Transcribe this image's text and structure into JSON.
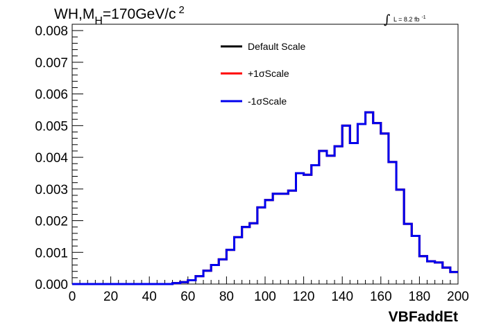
{
  "chart_data": {
    "type": "line",
    "style": "step-histogram",
    "title_parts": {
      "main": "WH,M",
      "sub": "H",
      "rest": "=170GeV/c",
      "sup": "2"
    },
    "lumi_parts": {
      "integral": "∫",
      "text": "L = 8.2 fb",
      "sup": "-1"
    },
    "xlabel": "VBFaddEt",
    "ylabel": "",
    "xlim": [
      0,
      200
    ],
    "ylim": [
      0,
      0.0082
    ],
    "x_ticks": [
      "0",
      "20",
      "40",
      "60",
      "80",
      "100",
      "120",
      "140",
      "160",
      "180",
      "200"
    ],
    "x_tick_values": [
      0,
      20,
      40,
      60,
      80,
      100,
      120,
      140,
      160,
      180,
      200
    ],
    "y_ticks": [
      "0.000",
      "0.001",
      "0.002",
      "0.003",
      "0.004",
      "0.005",
      "0.006",
      "0.007",
      "0.008"
    ],
    "y_tick_values": [
      0,
      0.001,
      0.002,
      0.003,
      0.004,
      0.005,
      0.006,
      0.007,
      0.008
    ],
    "bin_edges": [
      0,
      4,
      8,
      12,
      16,
      20,
      24,
      28,
      32,
      36,
      40,
      44,
      48,
      52,
      56,
      60,
      64,
      68,
      72,
      76,
      80,
      84,
      88,
      92,
      96,
      100,
      104,
      108,
      112,
      116,
      120,
      124,
      128,
      132,
      136,
      140,
      144,
      148,
      152,
      156,
      160,
      164,
      168,
      172,
      176,
      180,
      184,
      188,
      192,
      196,
      200
    ],
    "legend": [
      {
        "label": "Default Scale",
        "color": "#000000"
      },
      {
        "label": "+1σScale",
        "color": "#ff0000"
      },
      {
        "label": "-1σScale",
        "color": "#0000ee"
      }
    ],
    "legend_placement": "top-center",
    "grid": false,
    "series": [
      {
        "name": "Default Scale",
        "color": "#000000",
        "values": [
          0,
          0,
          0,
          0,
          0,
          0,
          0,
          0,
          0,
          0,
          0,
          0,
          0,
          3e-05,
          6e-05,
          0.00012,
          0.00025,
          0.00042,
          0.0006,
          0.00078,
          0.00108,
          0.00148,
          0.0018,
          0.00192,
          0.00242,
          0.00265,
          0.00285,
          0.00285,
          0.00295,
          0.0035,
          0.00345,
          0.00375,
          0.0042,
          0.00405,
          0.00435,
          0.005,
          0.00445,
          0.00505,
          0.00542,
          0.00508,
          0.00475,
          0.00385,
          0.00298,
          0.0019,
          0.00152,
          0.00088,
          0.00072,
          0.00068,
          0.00052,
          0.00038
        ]
      },
      {
        "name": "+1σScale",
        "color": "#ff0000",
        "values": [
          0,
          0,
          0,
          0,
          0,
          0,
          0,
          0,
          0,
          0,
          0,
          0,
          0,
          3e-05,
          6e-05,
          0.00012,
          0.00025,
          0.00042,
          0.0006,
          0.00078,
          0.00108,
          0.00148,
          0.0018,
          0.00192,
          0.00242,
          0.00265,
          0.00285,
          0.00285,
          0.00295,
          0.0035,
          0.00345,
          0.00375,
          0.0042,
          0.00405,
          0.00435,
          0.005,
          0.00445,
          0.00505,
          0.00542,
          0.00508,
          0.00475,
          0.00385,
          0.00298,
          0.0019,
          0.00152,
          0.00088,
          0.00072,
          0.00068,
          0.00052,
          0.00038
        ]
      },
      {
        "name": "-1σScale",
        "color": "#0000ee",
        "values": [
          0,
          0,
          0,
          0,
          0,
          0,
          0,
          0,
          0,
          0,
          0,
          0,
          0,
          3e-05,
          6e-05,
          0.00012,
          0.00025,
          0.00042,
          0.0006,
          0.00078,
          0.00108,
          0.00148,
          0.0018,
          0.00192,
          0.00242,
          0.00265,
          0.00285,
          0.00285,
          0.00295,
          0.0035,
          0.00345,
          0.00375,
          0.0042,
          0.00405,
          0.00435,
          0.005,
          0.00445,
          0.00505,
          0.00542,
          0.00508,
          0.00475,
          0.00385,
          0.00298,
          0.0019,
          0.00152,
          0.00088,
          0.00072,
          0.00068,
          0.00052,
          0.00038
        ]
      }
    ]
  }
}
